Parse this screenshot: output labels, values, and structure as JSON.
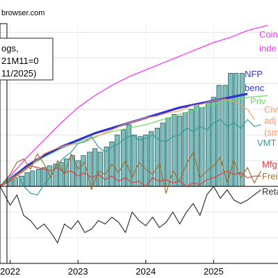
{
  "chart_data": {
    "type": "line",
    "watermark": "browser.com",
    "note_lines": [
      "ogs,",
      "21M11=0",
      "11/2025)"
    ],
    "x_ticks": [
      {
        "label": "2022",
        "x": 2022.0
      },
      {
        "label": "2023",
        "x": 2023.0
      },
      {
        "label": "2024",
        "x": 2024.0
      },
      {
        "label": "2025",
        "x": 2025.0
      }
    ],
    "xlim": [
      2021.85,
      2025.95
    ],
    "ylim": [
      -0.09,
      0.19
    ],
    "zero_line": 0.0,
    "gridlines": [
      -0.06,
      -0.03,
      0.0,
      0.03,
      0.06,
      0.09,
      0.12,
      0.15,
      0.18
    ],
    "bars": {
      "name": "Real GDO/GDP-type index (bars)",
      "color": "#7fbfbf",
      "x": [
        2022.0,
        2022.08,
        2022.17,
        2022.25,
        2022.33,
        2022.42,
        2022.5,
        2022.58,
        2022.67,
        2022.75,
        2022.83,
        2022.92,
        2023.0,
        2023.08,
        2023.17,
        2023.25,
        2023.33,
        2023.42,
        2023.5,
        2023.58,
        2023.67,
        2023.75,
        2023.83,
        2023.92,
        2024.0,
        2024.08,
        2024.17,
        2024.25,
        2024.33,
        2024.42,
        2024.5,
        2024.58,
        2024.67,
        2024.75,
        2024.83,
        2024.92,
        2025.0,
        2025.08,
        2025.17,
        2025.25,
        2025.33,
        2025.42
      ],
      "values": [
        0.008,
        0.01,
        0.012,
        0.016,
        0.018,
        0.02,
        0.022,
        0.024,
        0.026,
        0.028,
        0.032,
        0.036,
        0.03,
        0.036,
        0.04,
        0.044,
        0.04,
        0.046,
        0.052,
        0.06,
        0.066,
        0.072,
        0.06,
        0.058,
        0.06,
        0.064,
        0.068,
        0.074,
        0.08,
        0.084,
        0.082,
        0.086,
        0.09,
        0.096,
        0.092,
        0.098,
        0.104,
        0.118,
        0.118,
        0.132,
        0.132,
        0.132
      ]
    },
    "series": [
      {
        "name": "Coin",
        "name2": "inde",
        "color": "#ff33ff",
        "width": 1.3,
        "x": [
          2021.85,
          2022.0,
          2022.25,
          2022.5,
          2022.75,
          2023.0,
          2023.25,
          2023.5,
          2023.75,
          2024.0,
          2024.25,
          2024.5,
          2024.75,
          2025.0,
          2025.25,
          2025.5,
          2025.8
        ],
        "values": [
          0.0,
          0.012,
          0.034,
          0.054,
          0.074,
          0.092,
          0.106,
          0.118,
          0.128,
          0.136,
          0.144,
          0.152,
          0.16,
          0.168,
          0.174,
          0.182,
          0.188
        ]
      },
      {
        "name": "NFP",
        "name2": "benc",
        "color": "#3333cc",
        "width": 3.2,
        "x": [
          2021.85,
          2022.0,
          2022.25,
          2022.5,
          2022.75,
          2023.0,
          2023.25,
          2023.5,
          2023.75,
          2024.0,
          2024.25,
          2024.5,
          2024.75,
          2025.0,
          2025.25,
          2025.5
        ],
        "values": [
          0.0,
          0.008,
          0.024,
          0.036,
          0.046,
          0.054,
          0.062,
          0.068,
          0.074,
          0.08,
          0.086,
          0.092,
          0.096,
          0.1,
          0.104,
          0.108
        ]
      },
      {
        "name": "Priv",
        "color": "#66dd66",
        "width": 1.2,
        "x": [
          2021.85,
          2022.0,
          2022.25,
          2022.5,
          2022.75,
          2023.0,
          2023.25,
          2023.5,
          2023.75,
          2024.0,
          2024.25,
          2024.5,
          2024.75,
          2025.0,
          2025.25,
          2025.5,
          2025.8
        ],
        "values": [
          0.0,
          0.008,
          0.022,
          0.034,
          0.044,
          0.052,
          0.058,
          0.064,
          0.068,
          0.072,
          0.078,
          0.084,
          0.09,
          0.096,
          0.1,
          0.104,
          0.106
        ]
      },
      {
        "name": "Civi",
        "name2": "adj",
        "name3": "(sm",
        "color": "#ff9966",
        "width": 1.2,
        "x": [
          2021.85,
          2022.0,
          2022.17,
          2022.33,
          2022.5,
          2022.67,
          2022.83,
          2023.0,
          2023.17,
          2023.33,
          2023.5,
          2023.67,
          2023.83,
          2024.0,
          2024.17,
          2024.33,
          2024.5,
          2024.67,
          2024.83,
          2025.0,
          2025.17,
          2025.33,
          2025.5,
          2025.6
        ],
        "values": [
          0.0,
          0.006,
          0.016,
          0.026,
          0.038,
          0.044,
          0.048,
          0.05,
          0.054,
          0.06,
          0.066,
          0.072,
          0.076,
          0.08,
          0.082,
          0.086,
          0.088,
          0.094,
          0.096,
          0.1,
          0.102,
          0.098,
          0.09,
          0.078
        ]
      },
      {
        "name": "VMT",
        "color": "#339999",
        "width": 1.2,
        "x": [
          2021.85,
          2022.0,
          2022.1,
          2022.2,
          2022.3,
          2022.4,
          2022.5,
          2022.6,
          2022.7,
          2022.8,
          2022.9,
          2023.0,
          2023.1,
          2023.2,
          2023.3,
          2023.4,
          2023.5,
          2023.6,
          2023.7,
          2023.8,
          2023.9,
          2024.0,
          2024.1,
          2024.2,
          2024.3,
          2024.4,
          2024.5,
          2024.6,
          2024.7,
          2024.8,
          2024.9,
          2025.0,
          2025.1,
          2025.2,
          2025.3,
          2025.4,
          2025.5,
          2025.6,
          2025.7
        ],
        "values": [
          0.0,
          0.01,
          0.016,
          0.0,
          -0.008,
          -0.01,
          0.002,
          0.012,
          0.026,
          0.034,
          0.04,
          0.05,
          0.052,
          0.058,
          0.046,
          0.04,
          0.046,
          0.05,
          0.056,
          0.06,
          0.054,
          0.056,
          0.06,
          0.054,
          0.052,
          0.058,
          0.06,
          0.068,
          0.064,
          0.07,
          0.066,
          0.074,
          0.078,
          0.07,
          0.074,
          0.068,
          0.078,
          0.07,
          0.072
        ]
      },
      {
        "name": "Mfg",
        "color": "#e8383d",
        "width": 1.2,
        "x": [
          2021.85,
          2022.0,
          2022.1,
          2022.2,
          2022.3,
          2022.4,
          2022.5,
          2022.6,
          2022.7,
          2022.8,
          2022.9,
          2023.0,
          2023.1,
          2023.2,
          2023.3,
          2023.4,
          2023.5,
          2023.6,
          2023.7,
          2023.8,
          2023.9,
          2024.0,
          2024.1,
          2024.2,
          2024.3,
          2024.4,
          2024.5,
          2024.6,
          2024.7,
          2024.8,
          2024.9,
          2025.0,
          2025.1,
          2025.2,
          2025.3,
          2025.4,
          2025.5,
          2025.6,
          2025.7
        ],
        "values": [
          0.0,
          0.006,
          0.014,
          0.018,
          0.024,
          0.022,
          0.02,
          0.018,
          0.022,
          0.016,
          0.018,
          0.012,
          0.016,
          0.01,
          0.014,
          0.008,
          0.012,
          0.006,
          0.01,
          0.004,
          0.006,
          0.0,
          0.01,
          0.006,
          0.008,
          0.004,
          0.006,
          0.0,
          0.004,
          0.002,
          0.008,
          0.01,
          0.014,
          0.018,
          0.014,
          0.016,
          0.01,
          0.012,
          0.012
        ]
      },
      {
        "name": "Freig",
        "color": "#a0702a",
        "width": 1.2,
        "x": [
          2021.85,
          2022.0,
          2022.1,
          2022.2,
          2022.3,
          2022.4,
          2022.5,
          2022.6,
          2022.7,
          2022.8,
          2022.9,
          2023.0,
          2023.1,
          2023.2,
          2023.3,
          2023.4,
          2023.5,
          2023.6,
          2023.7,
          2023.8,
          2023.9,
          2024.0,
          2024.1,
          2024.2,
          2024.3,
          2024.4,
          2024.5,
          2024.6,
          2024.7,
          2024.8,
          2024.9,
          2025.0,
          2025.1,
          2025.2,
          2025.3,
          2025.4,
          2025.5,
          2025.6,
          2025.7
        ],
        "values": [
          0.0,
          0.014,
          0.028,
          0.032,
          0.02,
          0.038,
          0.026,
          0.01,
          0.03,
          0.014,
          0.038,
          0.02,
          0.028,
          -0.004,
          0.018,
          0.014,
          0.026,
          0.016,
          0.03,
          0.01,
          0.028,
          0.02,
          0.014,
          0.026,
          -0.008,
          0.018,
          0.006,
          0.026,
          0.04,
          0.01,
          0.018,
          0.024,
          0.034,
          0.004,
          0.03,
          0.01,
          0.022,
          0.004,
          0.018
        ]
      },
      {
        "name": "Reta",
        "color": "#333333",
        "width": 1.2,
        "x": [
          2021.85,
          2022.0,
          2022.1,
          2022.2,
          2022.3,
          2022.4,
          2022.5,
          2022.6,
          2022.7,
          2022.8,
          2022.9,
          2023.0,
          2023.1,
          2023.2,
          2023.3,
          2023.4,
          2023.5,
          2023.6,
          2023.7,
          2023.8,
          2023.9,
          2024.0,
          2024.1,
          2024.2,
          2024.3,
          2024.4,
          2024.5,
          2024.6,
          2024.7,
          2024.8,
          2024.9,
          2025.0,
          2025.1,
          2025.2,
          2025.3,
          2025.4,
          2025.5,
          2025.6,
          2025.7
        ],
        "values": [
          0.0,
          -0.022,
          -0.01,
          -0.034,
          -0.04,
          -0.05,
          -0.044,
          -0.054,
          -0.066,
          -0.044,
          -0.05,
          -0.04,
          -0.054,
          -0.05,
          -0.04,
          -0.044,
          -0.036,
          -0.042,
          -0.054,
          -0.03,
          -0.04,
          -0.046,
          -0.036,
          -0.048,
          -0.042,
          -0.03,
          -0.044,
          -0.03,
          -0.02,
          -0.034,
          -0.01,
          0.0,
          -0.014,
          -0.004,
          -0.016,
          -0.02,
          -0.016,
          -0.01,
          -0.004
        ]
      }
    ]
  }
}
